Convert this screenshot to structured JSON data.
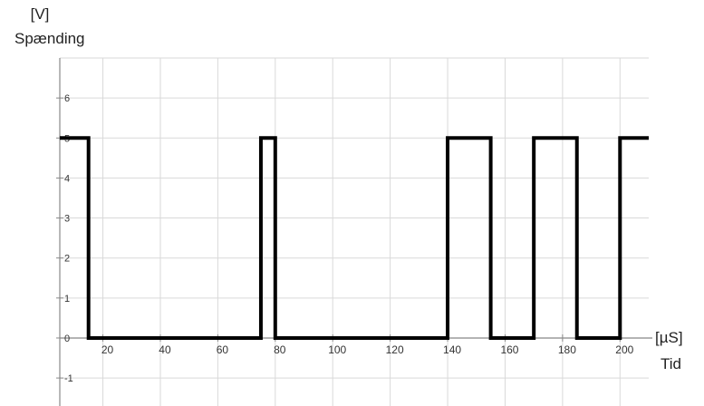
{
  "chart_data": {
    "type": "line",
    "y_unit": "[V]",
    "ylabel": "Spænding",
    "x_unit": "[µS]",
    "xlabel": "Tid",
    "xlim": [
      5,
      210
    ],
    "ylim": [
      -1.7,
      7
    ],
    "x_ticks": [
      20,
      40,
      60,
      80,
      100,
      120,
      140,
      160,
      180,
      200
    ],
    "y_ticks": [
      -1,
      0,
      1,
      2,
      3,
      4,
      5,
      6
    ],
    "grid": true,
    "step": "post",
    "series": [
      {
        "x": [
          5,
          15,
          75,
          80,
          140,
          155,
          170,
          185,
          200,
          210
        ],
        "y": [
          5,
          0,
          5,
          0,
          5,
          0,
          5,
          0,
          5,
          5
        ]
      }
    ],
    "colors": {
      "line": "#000000",
      "grid": "#d9d9d9",
      "axis": "#888888"
    }
  }
}
